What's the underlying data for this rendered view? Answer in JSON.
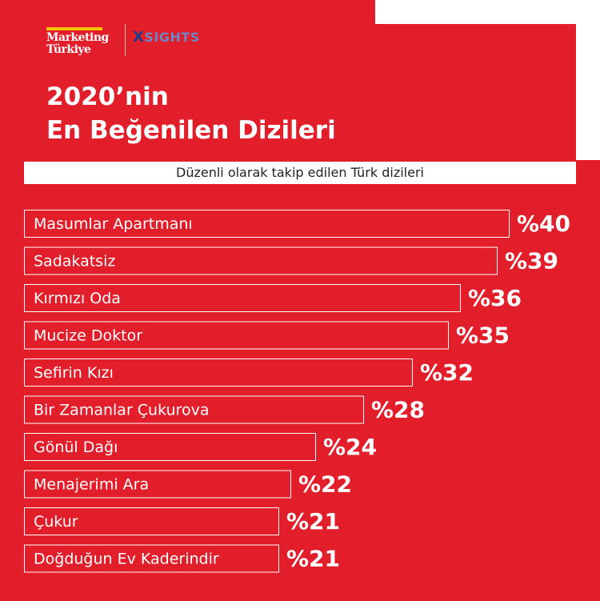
{
  "branding": {
    "marketing_line1": "Marketing",
    "marketing_line2": "Türkiye",
    "xsights_x": "X",
    "xsights_rest": "SIGHTS"
  },
  "title_line1": "2020’nin",
  "title_line2": "En Beğenilen Dizileri",
  "subtitle": "Düzenli olarak takip edilen Türk dizileri",
  "colors": {
    "background": "#e31e2b",
    "bar_outline": "#ffffff",
    "text": "#ffffff",
    "accent": "#f5c400"
  },
  "chart_data": {
    "type": "bar",
    "orientation": "horizontal",
    "categories": [
      "Masumlar Apartmanı",
      "Sadakatsiz",
      "Kırmızı Oda",
      "Mucize Doktor",
      "Sefirin Kızı",
      "Bir Zamanlar Çukurova",
      "Gönül Dağı",
      "Menajerimi Ara",
      "Çukur",
      "Doğduğun Ev Kaderindir"
    ],
    "values": [
      40,
      39,
      36,
      35,
      32,
      28,
      24,
      22,
      21,
      21
    ],
    "value_labels": [
      "%40",
      "%39",
      "%36",
      "%35",
      "%32",
      "%28",
      "%24",
      "%22",
      "%21",
      "%21"
    ],
    "xlim": [
      0,
      40
    ]
  }
}
